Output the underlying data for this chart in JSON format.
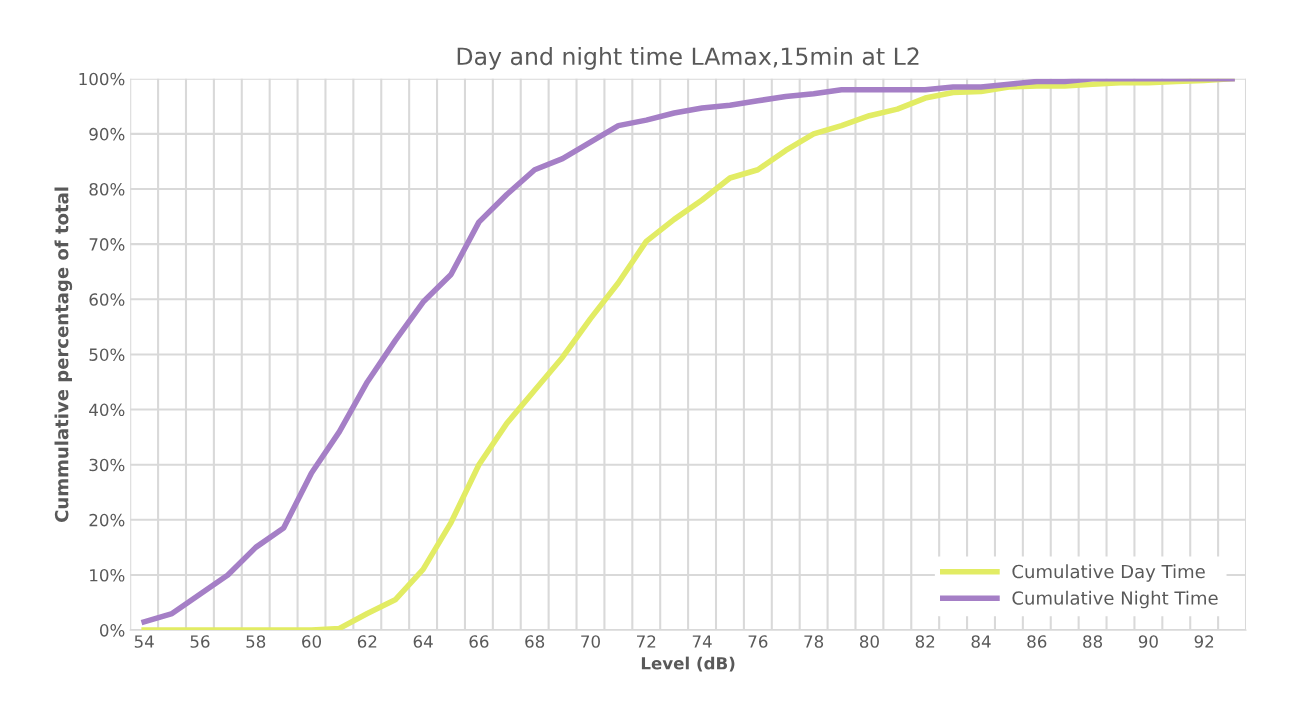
{
  "chart_data": {
    "type": "line",
    "title": "Day and night time LAmax,15min at L2",
    "xlabel": "Level (dB)",
    "ylabel": "Cummulative percentage of total",
    "categories": [
      "54",
      null,
      "56",
      null,
      "58",
      null,
      "60",
      null,
      "62",
      null,
      "64",
      null,
      "66",
      null,
      "68",
      null,
      "70",
      null,
      "72",
      null,
      "74",
      null,
      "76",
      null,
      "78",
      null,
      "80",
      null,
      "82",
      null,
      "84",
      null,
      "86",
      null,
      "88",
      null,
      "90",
      null,
      "92",
      null
    ],
    "series": [
      {
        "name": "Cumulative Day Time",
        "color": "#e2ec64",
        "values": [
          0,
          0,
          0,
          0,
          0,
          0,
          0,
          0.3,
          3,
          5.5,
          11,
          19.5,
          30,
          37.5,
          43.5,
          49.5,
          56.5,
          63,
          70.5,
          74.5,
          78,
          82,
          83.5,
          87,
          90,
          91.5,
          93.3,
          94.5,
          96.5,
          97.5,
          97.7,
          98.5,
          98.7,
          98.7,
          99,
          99.3,
          99.3,
          99.5,
          99.7,
          100
        ]
      },
      {
        "name": "Cumulative Night Time",
        "color": "#a57fc6",
        "values": [
          1.5,
          3,
          6.5,
          10,
          15,
          18.5,
          28.5,
          36,
          45,
          52.5,
          59.5,
          64.5,
          74,
          79,
          83.5,
          85.5,
          88.5,
          91.5,
          92.5,
          93.8,
          94.7,
          95.2,
          96,
          96.8,
          97.3,
          98,
          98,
          98,
          98,
          98.5,
          98.5,
          99,
          99.5,
          99.5,
          100,
          100,
          100,
          100,
          100,
          100
        ]
      }
    ],
    "ylim": [
      0,
      100
    ],
    "yticks": [
      {
        "value": 0,
        "label": "0%"
      },
      {
        "value": 10,
        "label": "10%"
      },
      {
        "value": 20,
        "label": "20%"
      },
      {
        "value": 30,
        "label": "30%"
      },
      {
        "value": 40,
        "label": "40%"
      },
      {
        "value": 50,
        "label": "50%"
      },
      {
        "value": 60,
        "label": "60%"
      },
      {
        "value": 70,
        "label": "70%"
      },
      {
        "value": 80,
        "label": "80%"
      },
      {
        "value": 90,
        "label": "90%"
      },
      {
        "value": 100,
        "label": "100%"
      }
    ],
    "grid": true,
    "legend": "bottom right",
    "marker": "none",
    "line_style": "solid"
  }
}
